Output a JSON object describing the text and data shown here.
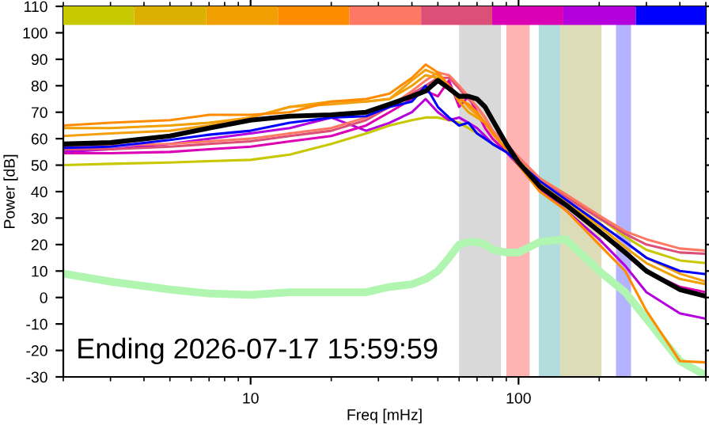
{
  "chart_data": {
    "type": "line",
    "xlabel": "Freq [mHz]",
    "ylabel": "Power [dB]",
    "log": "x",
    "xlim": [
      2,
      500
    ],
    "xticks": [
      10,
      100
    ],
    "ylim": [
      -30,
      110
    ],
    "yticks": [
      -30,
      -20,
      -10,
      0,
      10,
      20,
      30,
      40,
      50,
      60,
      70,
      80,
      90,
      100,
      110
    ],
    "grid": false,
    "legend": false,
    "marker": "none",
    "line_style": "solid",
    "x": [
      2,
      3,
      5,
      7,
      10,
      14,
      20,
      27,
      33,
      40,
      45,
      50,
      55,
      60,
      65,
      70,
      75,
      80,
      90,
      100,
      120,
      150,
      200,
      250,
      300,
      400,
      500
    ],
    "bands": [
      {
        "axis": "x",
        "from": 60,
        "to": 86,
        "color": "#d9d9d9"
      },
      {
        "axis": "x",
        "from": 90,
        "to": 110,
        "color": "#ffb3b3"
      },
      {
        "axis": "x",
        "from": 119,
        "to": 143,
        "color": "#b3dcdc"
      },
      {
        "axis": "x",
        "from": 143,
        "to": 204,
        "color": "#dcdcb8"
      },
      {
        "axis": "x",
        "from": 231,
        "to": 263,
        "color": "#b3b3ff"
      }
    ],
    "series": [
      {
        "type": "bar",
        "x": [
          2.7,
          5.0,
          9.3,
          17.2,
          31.8,
          58.9,
          108,
          200,
          375
        ],
        "base": [
          103,
          103,
          103,
          103,
          103,
          103,
          103,
          103,
          103
        ],
        "values": [
          7,
          7,
          7,
          7,
          7,
          7,
          7,
          7,
          7
        ],
        "colors": [
          "#c8c800",
          "#dcb000",
          "#f0a000",
          "#ff8c00",
          "#ff7864",
          "#dc5078",
          "#dc00b4",
          "#b400dc",
          "#0000ff"
        ]
      },
      {
        "color": "#c8c800",
        "values": [
          50,
          50.5,
          51,
          51.5,
          52,
          54,
          58,
          62,
          65,
          67,
          68,
          68,
          67,
          66,
          64,
          62,
          60,
          58,
          55,
          52,
          45,
          39,
          30,
          23,
          18,
          14,
          13
        ]
      },
      {
        "color": "#b400dc",
        "values": [
          55,
          56,
          58,
          60,
          62,
          64,
          68,
          63,
          66,
          70,
          75,
          70,
          67,
          68,
          66,
          64,
          61,
          58,
          55,
          50,
          41,
          33,
          22,
          12,
          2,
          -6,
          -8
        ]
      },
      {
        "color": "#dc00b4",
        "values": [
          54.5,
          54.5,
          55,
          56,
          57,
          59,
          61,
          65,
          70,
          75,
          78,
          76,
          82,
          72,
          76,
          70,
          64,
          60,
          55,
          50,
          42,
          35,
          25,
          17,
          10,
          4,
          2
        ]
      },
      {
        "color": "#dc5078",
        "values": [
          56,
          56,
          57,
          58,
          59,
          61,
          63,
          67,
          72,
          77,
          80,
          83,
          83,
          79,
          75,
          72,
          68,
          63,
          58,
          53,
          45,
          38,
          30,
          24,
          20,
          17,
          16.5
        ]
      },
      {
        "color": "#ff7864",
        "values": [
          57,
          57.5,
          58,
          59,
          60,
          62,
          64,
          68,
          72,
          78,
          82,
          85,
          84,
          80,
          76,
          72,
          68,
          63,
          58,
          53,
          45,
          39,
          31,
          25,
          22,
          18.5,
          17.7
        ]
      },
      {
        "color": "#f0a000",
        "values": [
          64,
          64,
          65,
          66,
          68,
          72,
          74,
          74,
          75,
          80,
          84,
          83,
          80,
          74,
          70,
          68,
          66,
          62,
          56,
          51,
          43,
          36,
          27,
          19,
          13,
          7,
          5
        ]
      },
      {
        "color": "#f5a010",
        "values": [
          61,
          62,
          63,
          65,
          68,
          72,
          73,
          74,
          75,
          82,
          86,
          84,
          80,
          76,
          72,
          69,
          66,
          62,
          56,
          51,
          44,
          37,
          28,
          21,
          15,
          9,
          6
        ]
      },
      {
        "color": "#ff8c00",
        "values": [
          65,
          66,
          67,
          69,
          69,
          70,
          74,
          75,
          77,
          83,
          88,
          85,
          80,
          75,
          73,
          70,
          66,
          62,
          56,
          50,
          40,
          33,
          20,
          10,
          -5,
          -24,
          -24.5
        ]
      },
      {
        "color": "#0000ff",
        "values": [
          56.5,
          57,
          59.5,
          61.5,
          63,
          66,
          68,
          68.5,
          72,
          74,
          80,
          72,
          68,
          65,
          66,
          62,
          60,
          58,
          55,
          51,
          44,
          37,
          28,
          21,
          15,
          10,
          8.8
        ]
      },
      {
        "color": "#000000",
        "values": [
          58,
          58.5,
          61,
          64,
          67,
          68.5,
          69,
          70,
          73,
          76,
          78,
          82,
          79,
          76,
          76,
          75,
          72,
          67,
          58,
          51,
          42,
          35,
          25,
          17,
          10,
          3,
          0.5
        ]
      },
      {
        "color": "#b0f5b0",
        "values": [
          9,
          6,
          3,
          1.5,
          1,
          2,
          2,
          2,
          4,
          5,
          7,
          10,
          15,
          20,
          21,
          21,
          20,
          18,
          17,
          17,
          21,
          22,
          10,
          2,
          -8,
          -24,
          -29.5
        ]
      }
    ],
    "annotations": [
      "Ending 2026-07-17 15:59:59"
    ]
  }
}
